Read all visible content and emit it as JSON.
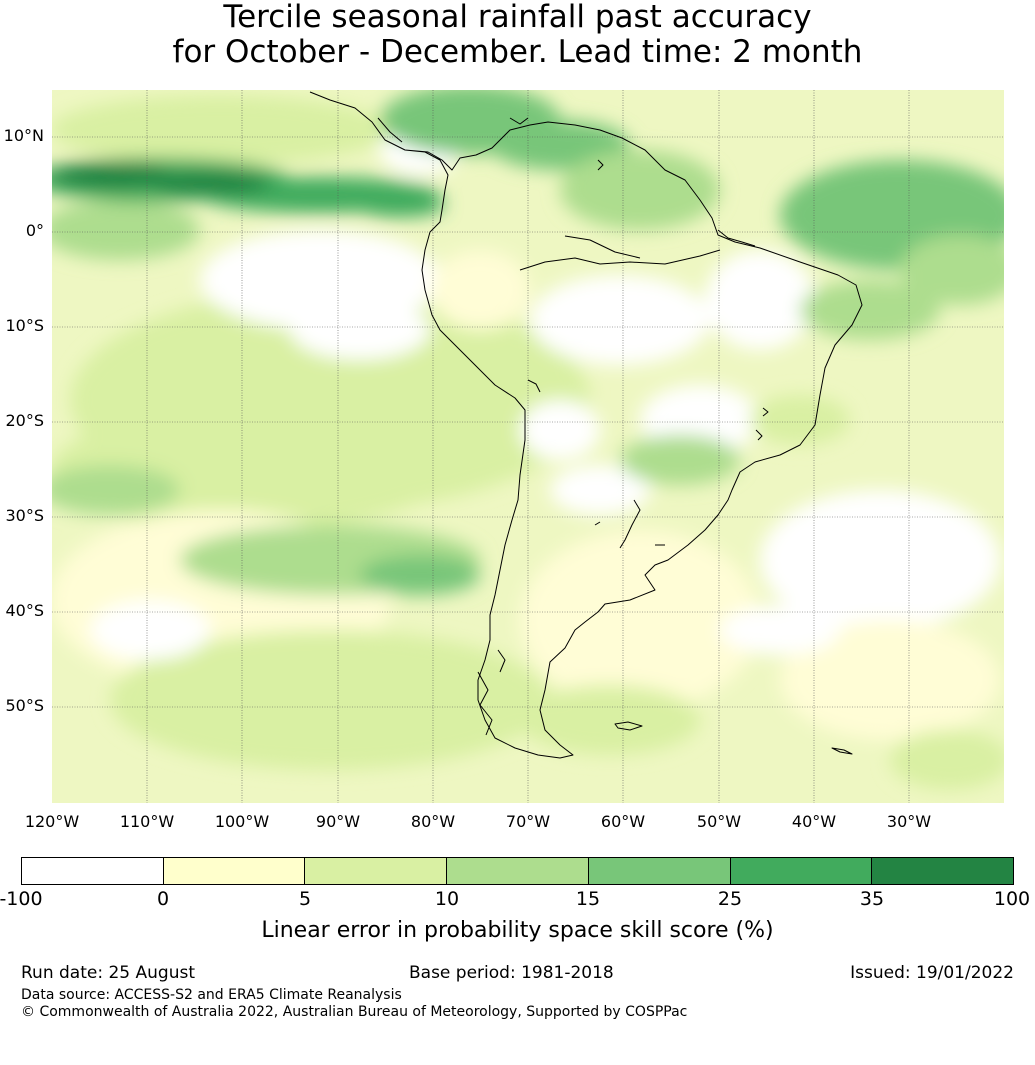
{
  "title": {
    "line1": "Tercile seasonal rainfall past accuracy",
    "line2": "for October - December. Lead time: 2 month"
  },
  "map": {
    "lat_labels": [
      "10°N",
      "0°",
      "10°S",
      "20°S",
      "30°S",
      "40°S",
      "50°S"
    ],
    "lon_labels": [
      "120°W",
      "110°W",
      "100°W",
      "90°W",
      "80°W",
      "70°W",
      "60°W",
      "50°W",
      "40°W",
      "30°W"
    ],
    "colors": {
      "ocean_base": "#f2f9c8",
      "land_base": "#fafcd8",
      "coastline": "#000000",
      "gridline": "#555555"
    }
  },
  "colorbar": {
    "label": "Linear error in probability space skill score (%)",
    "ticks": [
      "-100",
      "0",
      "5",
      "10",
      "15",
      "25",
      "35",
      "100"
    ],
    "colors": [
      "#ffffff",
      "#ffffcc",
      "#d9f0a3",
      "#addd8e",
      "#78c679",
      "#41ab5d",
      "#238443"
    ]
  },
  "footer": {
    "run_date": "Run date: 25 August",
    "base_period": "Base period: 1981-2018",
    "issued": "Issued: 19/01/2022",
    "data_source": "Data source: ACCESS-S2 and ERA5 Climate Reanalysis",
    "copyright": "© Commonwealth of Australia 2022, Australian Bureau of Meteorology, Supported by COSPPac"
  }
}
